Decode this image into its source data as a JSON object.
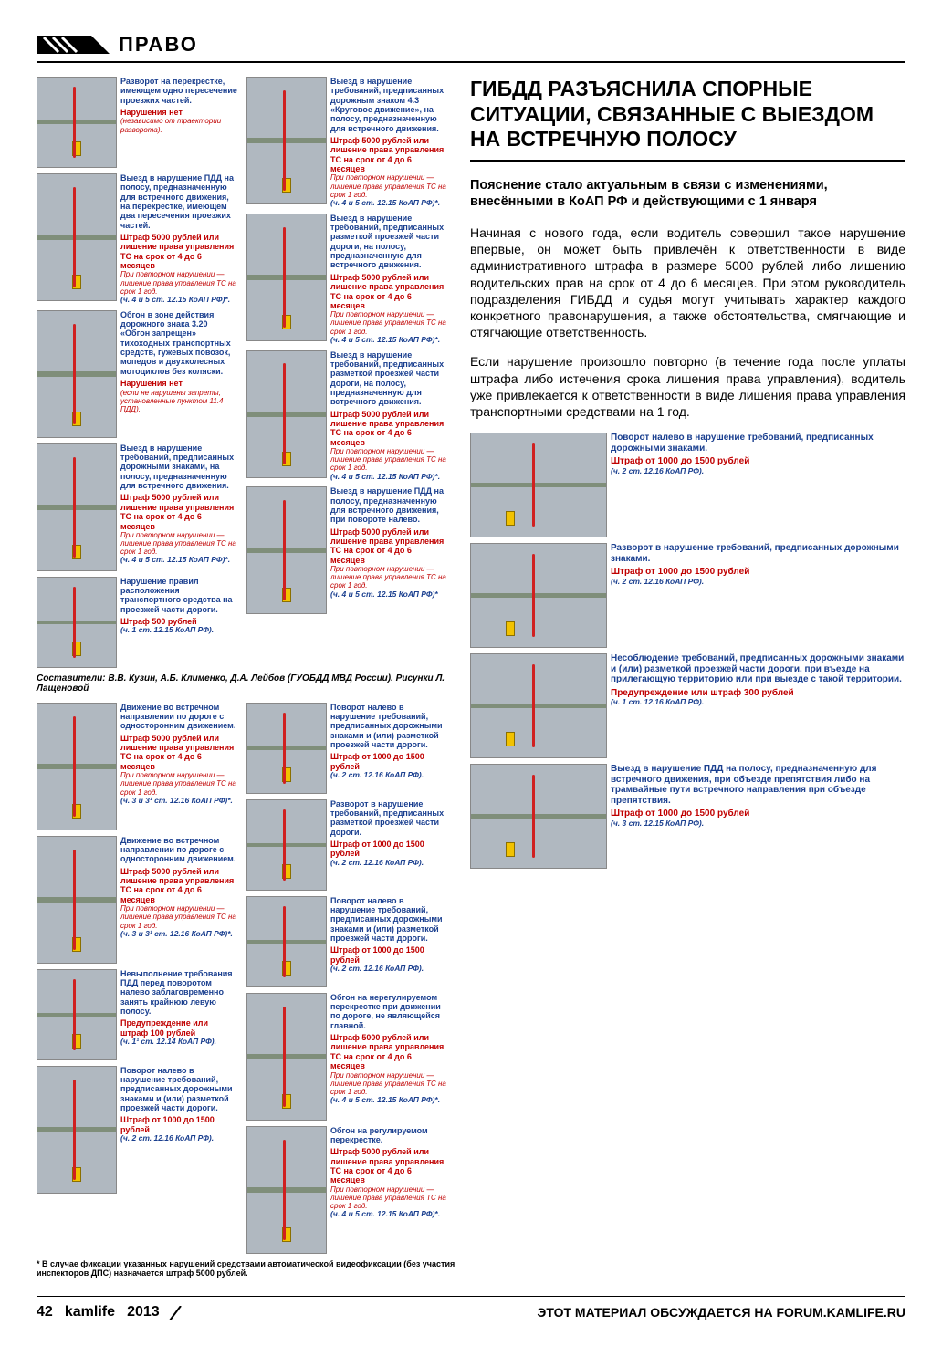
{
  "header": {
    "section": "ПРАВО"
  },
  "article": {
    "title": "ГИБДД РАЗЪЯСНИЛА СПОРНЫЕ СИТУАЦИИ, СВЯЗАННЫЕ С ВЫЕЗДОМ НА ВСТРЕЧНУЮ ПОЛОСУ",
    "lead": "Пояснение стало актуальным в связи с изменениями, внесёнными в КоАП РФ и действующими с 1 января",
    "para1": "Начиная с нового года, если водитель совершил такое нарушение впервые, он может быть привлечён к ответственности в виде административного штрафа в размере 5000 рублей либо лишению водительских прав на срок от 4 до 6 месяцев. При этом руководитель подразделения ГИБДД и судья могут учитывать характер каждого конкретного правонарушения, а также обстоятельства, смягчающие и отягчающие ответственность.",
    "para2": "Если нарушение произошло повторно (в течение года после уплаты штрафа либо истечения срока лишения права управления), водитель уже привлекается к ответственности в виде лишения права управления транспортными средствами на 1 год."
  },
  "credits": "Составители: В.В. Кузин, А.Б. Клименко, Д.А. Лейбов (ГУОБДД МВД России). Рисунки Л. Лащеновой",
  "footnote": "* В случае фиксации указанных нарушений средствами автоматической видеофиксации (без участия инспекторов ДПС) назначается штраф 5000 рублей.",
  "footer": {
    "pagenum": "42",
    "brand": "kamlife",
    "year": "2013",
    "discuss": "ЭТОТ МАТЕРИАЛ ОБСУЖДАЕТСЯ НА FORUM.KAMLIFE.RU"
  },
  "top_col1": [
    {
      "desc": "Разворот на перекрестке, имеющем одно пересечение проезжих частей.",
      "penalty": "Нарушения нет",
      "note": "(независимо от траектории разворота).",
      "ref": "",
      "cls": "small"
    },
    {
      "desc": "Выезд в нарушение ПДД на полосу, предназначенную для встречного движения, на перекрестке, имеющем два пересечения проезжих частей.",
      "penalty": "Штраф 5000 рублей или лишение права управления ТС на срок от 4 до 6 месяцев",
      "note": "При повторном нарушении — лишение права управления ТС на срок 1 год.",
      "ref": "(ч. 4 и 5 ст. 12.15 КоАП РФ)*.",
      "cls": "big"
    },
    {
      "desc": "Обгон в зоне действия дорожного знака 3.20 «Обгон запрещен» тихоходных транспортных средств, гужевых повозок, мопедов и двухколесных мотоциклов без коляски.",
      "penalty": "Нарушения нет",
      "note": "(если не нарушены запреты, установленные пунктом 11.4 ПДД).",
      "ref": "",
      "cls": "big"
    },
    {
      "desc": "Выезд в нарушение требований, предписанных дорожными знаками, на полосу, предназначенную для встречного движения.",
      "penalty": "Штраф 5000 рублей или лишение права управления ТС на срок от 4 до 6 месяцев",
      "note": "При повторном нарушении — лишение права управления ТС на срок 1 год.",
      "ref": "(ч. 4 и 5 ст. 12.15 КоАП РФ)*.",
      "cls": "big"
    },
    {
      "desc": "Нарушение правил расположения транспортного средства на проезжей части дороги.",
      "penalty": "Штраф 500 рублей",
      "note": "",
      "ref": "(ч. 1 ст. 12.15 КоАП РФ).",
      "cls": "small"
    }
  ],
  "top_col2": [
    {
      "desc": "Выезд в нарушение требований, предписанных дорожным знаком 4.3 «Круговое движение», на полосу, предназначенную для встречного движения.",
      "penalty": "Штраф 5000 рублей или лишение права управления ТС на срок от 4 до 6 месяцев",
      "note": "При повторном нарушении — лишение права управления ТС на срок 1 год.",
      "ref": "(ч. 4 и 5 ст. 12.15 КоАП РФ)*.",
      "cls": "big"
    },
    {
      "desc": "Выезд в нарушение требований, предписанных разметкой проезжей части дороги, на полосу, предназначенную для встречного движения.",
      "penalty": "Штраф 5000 рублей или лишение права управления ТС на срок от 4 до 6 месяцев",
      "note": "При повторном нарушении — лишение права управления ТС на срок 1 год.",
      "ref": "(ч. 4 и 5 ст. 12.15 КоАП РФ)*.",
      "cls": "big"
    },
    {
      "desc": "Выезд в нарушение требований, предписанных разметкой проезжей части дороги, на полосу, предназначенную для встречного движения.",
      "penalty": "Штраф 5000 рублей или лишение права управления ТС на срок от 4 до 6 месяцев",
      "note": "При повторном нарушении — лишение права управления ТС на срок 1 год.",
      "ref": "(ч. 4 и 5 ст. 12.15 КоАП РФ)*.",
      "cls": "big"
    },
    {
      "desc": "Выезд в нарушение ПДД на полосу, предназначенную для встречного движения, при повороте налево.",
      "penalty": "Штраф 5000 рублей или лишение права управления ТС на срок от 4 до 6 месяцев",
      "note": "При повторном нарушении — лишение права управления ТС на срок 1 год.",
      "ref": "(ч. 4 и 5 ст. 12.15 КоАП РФ)*",
      "cls": "big"
    }
  ],
  "bot_col1": [
    {
      "desc": "Движение во встречном направлении по дороге с односторонним движением.",
      "penalty": "Штраф 5000 рублей или лишение права управления ТС на срок от 4 до 6 месяцев",
      "note": "При повторном нарушении — лишение права управления ТС на срок 1 год.",
      "ref": "(ч. 3 и 3¹ ст. 12.16 КоАП РФ)*.",
      "cls": "big"
    },
    {
      "desc": "Движение во встречном направлении по дороге с односторонним движением.",
      "penalty": "Штраф 5000 рублей или лишение права управления ТС на срок от 4 до 6 месяцев",
      "note": "При повторном нарушении — лишение права управления ТС на срок 1 год.",
      "ref": "(ч. 3 и 3¹ ст. 12.16 КоАП РФ)*.",
      "cls": "big"
    },
    {
      "desc": "Невыполнение требования ПДД перед поворотом налево заблаговременно занять крайнюю левую полосу.",
      "penalty": "Предупреждение или штраф 100 рублей",
      "note": "",
      "ref": "(ч. 1¹ ст. 12.14 КоАП РФ).",
      "cls": "small"
    },
    {
      "desc": "Поворот налево в нарушение требований, предписанных дорожными знаками и (или) разметкой проезжей части дороги.",
      "penalty": "Штраф от 1000 до 1500 рублей",
      "note": "",
      "ref": "(ч. 2 ст. 12.16 КоАП РФ).",
      "cls": "big"
    }
  ],
  "bot_col2": [
    {
      "desc": "Поворот налево в нарушение требований, предписанных дорожными знаками и (или) разметкой проезжей части дороги.",
      "penalty": "Штраф от 1000 до 1500 рублей",
      "note": "",
      "ref": "(ч. 2 ст. 12.16 КоАП РФ).",
      "cls": "small"
    },
    {
      "desc": "Разворот в нарушение требований, предписанных разметкой проезжей части дороги.",
      "penalty": "Штраф от 1000 до 1500 рублей",
      "note": "",
      "ref": "(ч. 2 ст. 12.16 КоАП РФ).",
      "cls": "small"
    },
    {
      "desc": "Поворот налево в нарушение требований, предписанных дорожными знаками и (или) разметкой проезжей части дороги.",
      "penalty": "Штраф от 1000 до 1500 рублей",
      "note": "",
      "ref": "(ч. 2 ст. 12.16 КоАП РФ).",
      "cls": "small"
    },
    {
      "desc": "Обгон на нерегулируемом перекрестке при движении по дороге, не являющейся главной.",
      "penalty": "Штраф 5000 рублей или лишение права управления ТС на срок от 4 до 6 месяцев",
      "note": "При повторном нарушении — лишение права управления ТС на срок 1 год.",
      "ref": "(ч. 4 и 5 ст. 12.15 КоАП РФ)*.",
      "cls": "big"
    },
    {
      "desc": "Обгон на регулируемом перекрестке.",
      "penalty": "Штраф 5000 рублей или лишение права управления ТС на срок от 4 до 6 месяцев",
      "note": "При повторном нарушении — лишение права управления ТС на срок 1 год.",
      "ref": "(ч. 4 и 5 ст. 12.15 КоАП РФ)*.",
      "cls": "big"
    }
  ],
  "right_cards": [
    {
      "desc": "Поворот налево в нарушение требований, предписанных дорожными знаками.",
      "penalty": "Штраф от 1000 до 1500 рублей",
      "note": "",
      "ref": "(ч. 2 ст. 12.16 КоАП РФ)."
    },
    {
      "desc": "Разворот в нарушение требований, предписанных дорожными знаками.",
      "penalty": "Штраф от 1000 до 1500 рублей",
      "note": "",
      "ref": "(ч. 2 ст. 12.16 КоАП РФ)."
    },
    {
      "desc": "Несоблюдение требований, предписанных дорожными знаками и (или) разметкой проезжей части дороги, при въезде на прилегающую территорию или при выезде с такой территории.",
      "penalty": "Предупреждение или штраф 300 рублей",
      "note": "",
      "ref": "(ч. 1 ст. 12.16 КоАП РФ)."
    },
    {
      "desc": "Выезд в нарушение ПДД на полосу, предназначенную для встречного движения, при объезде препятствия либо на трамвайные пути встречного направления при объезде препятствия.",
      "penalty": "Штраф от 1000 до 1500 рублей",
      "note": "",
      "ref": "(ч. 3 ст. 12.15 КоАП РФ)."
    }
  ]
}
